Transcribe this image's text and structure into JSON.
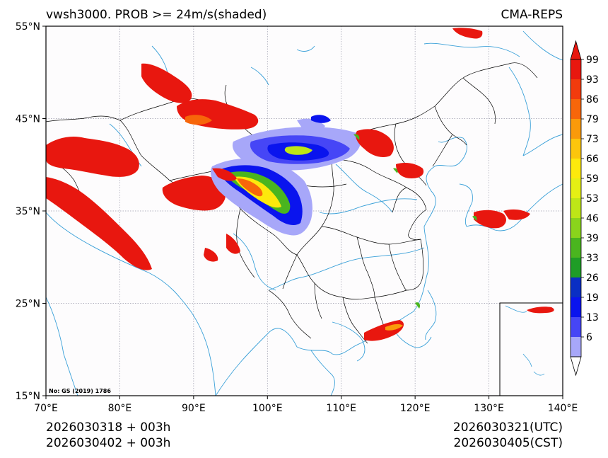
{
  "title": {
    "left": "vwsh3000. PROB >= 24m/s(shaded)",
    "right": "CMA-REPS"
  },
  "map": {
    "lon_ticks": [
      "70°E",
      "80°E",
      "90°E",
      "100°E",
      "110°E",
      "120°E",
      "130°E",
      "140°E"
    ],
    "lat_ticks": [
      "55°N",
      "45°N",
      "35°N",
      "25°N",
      "15°N"
    ],
    "lon_range": [
      70,
      140
    ],
    "lat_range": [
      15,
      55
    ],
    "map_number": "No: GS (2019) 1786",
    "gridline_color": "#9999aa",
    "coast_color": "#3aa0d8",
    "border_color": "#000000"
  },
  "colorbar": {
    "labels": [
      "99",
      "93",
      "86",
      "79",
      "73",
      "66",
      "59",
      "53",
      "46",
      "39",
      "33",
      "26",
      "19",
      "13",
      "6"
    ],
    "colors_top_to_bottom": [
      "#e8170f",
      "#f23b0d",
      "#f7660a",
      "#fa9a0a",
      "#fcc60c",
      "#fde90c",
      "#e5ef14",
      "#bee617",
      "#8ad41c",
      "#4ab51f",
      "#1f9d26",
      "#0a2fc4",
      "#0a14ee",
      "#4646f6",
      "#a7a7f9"
    ]
  },
  "footer": {
    "init_utc": "2026030318  +  003h",
    "init_cst": "2026030402  +  003h",
    "valid_utc": "2026030321(UTC)",
    "valid_cst": "2026030405(CST)"
  }
}
